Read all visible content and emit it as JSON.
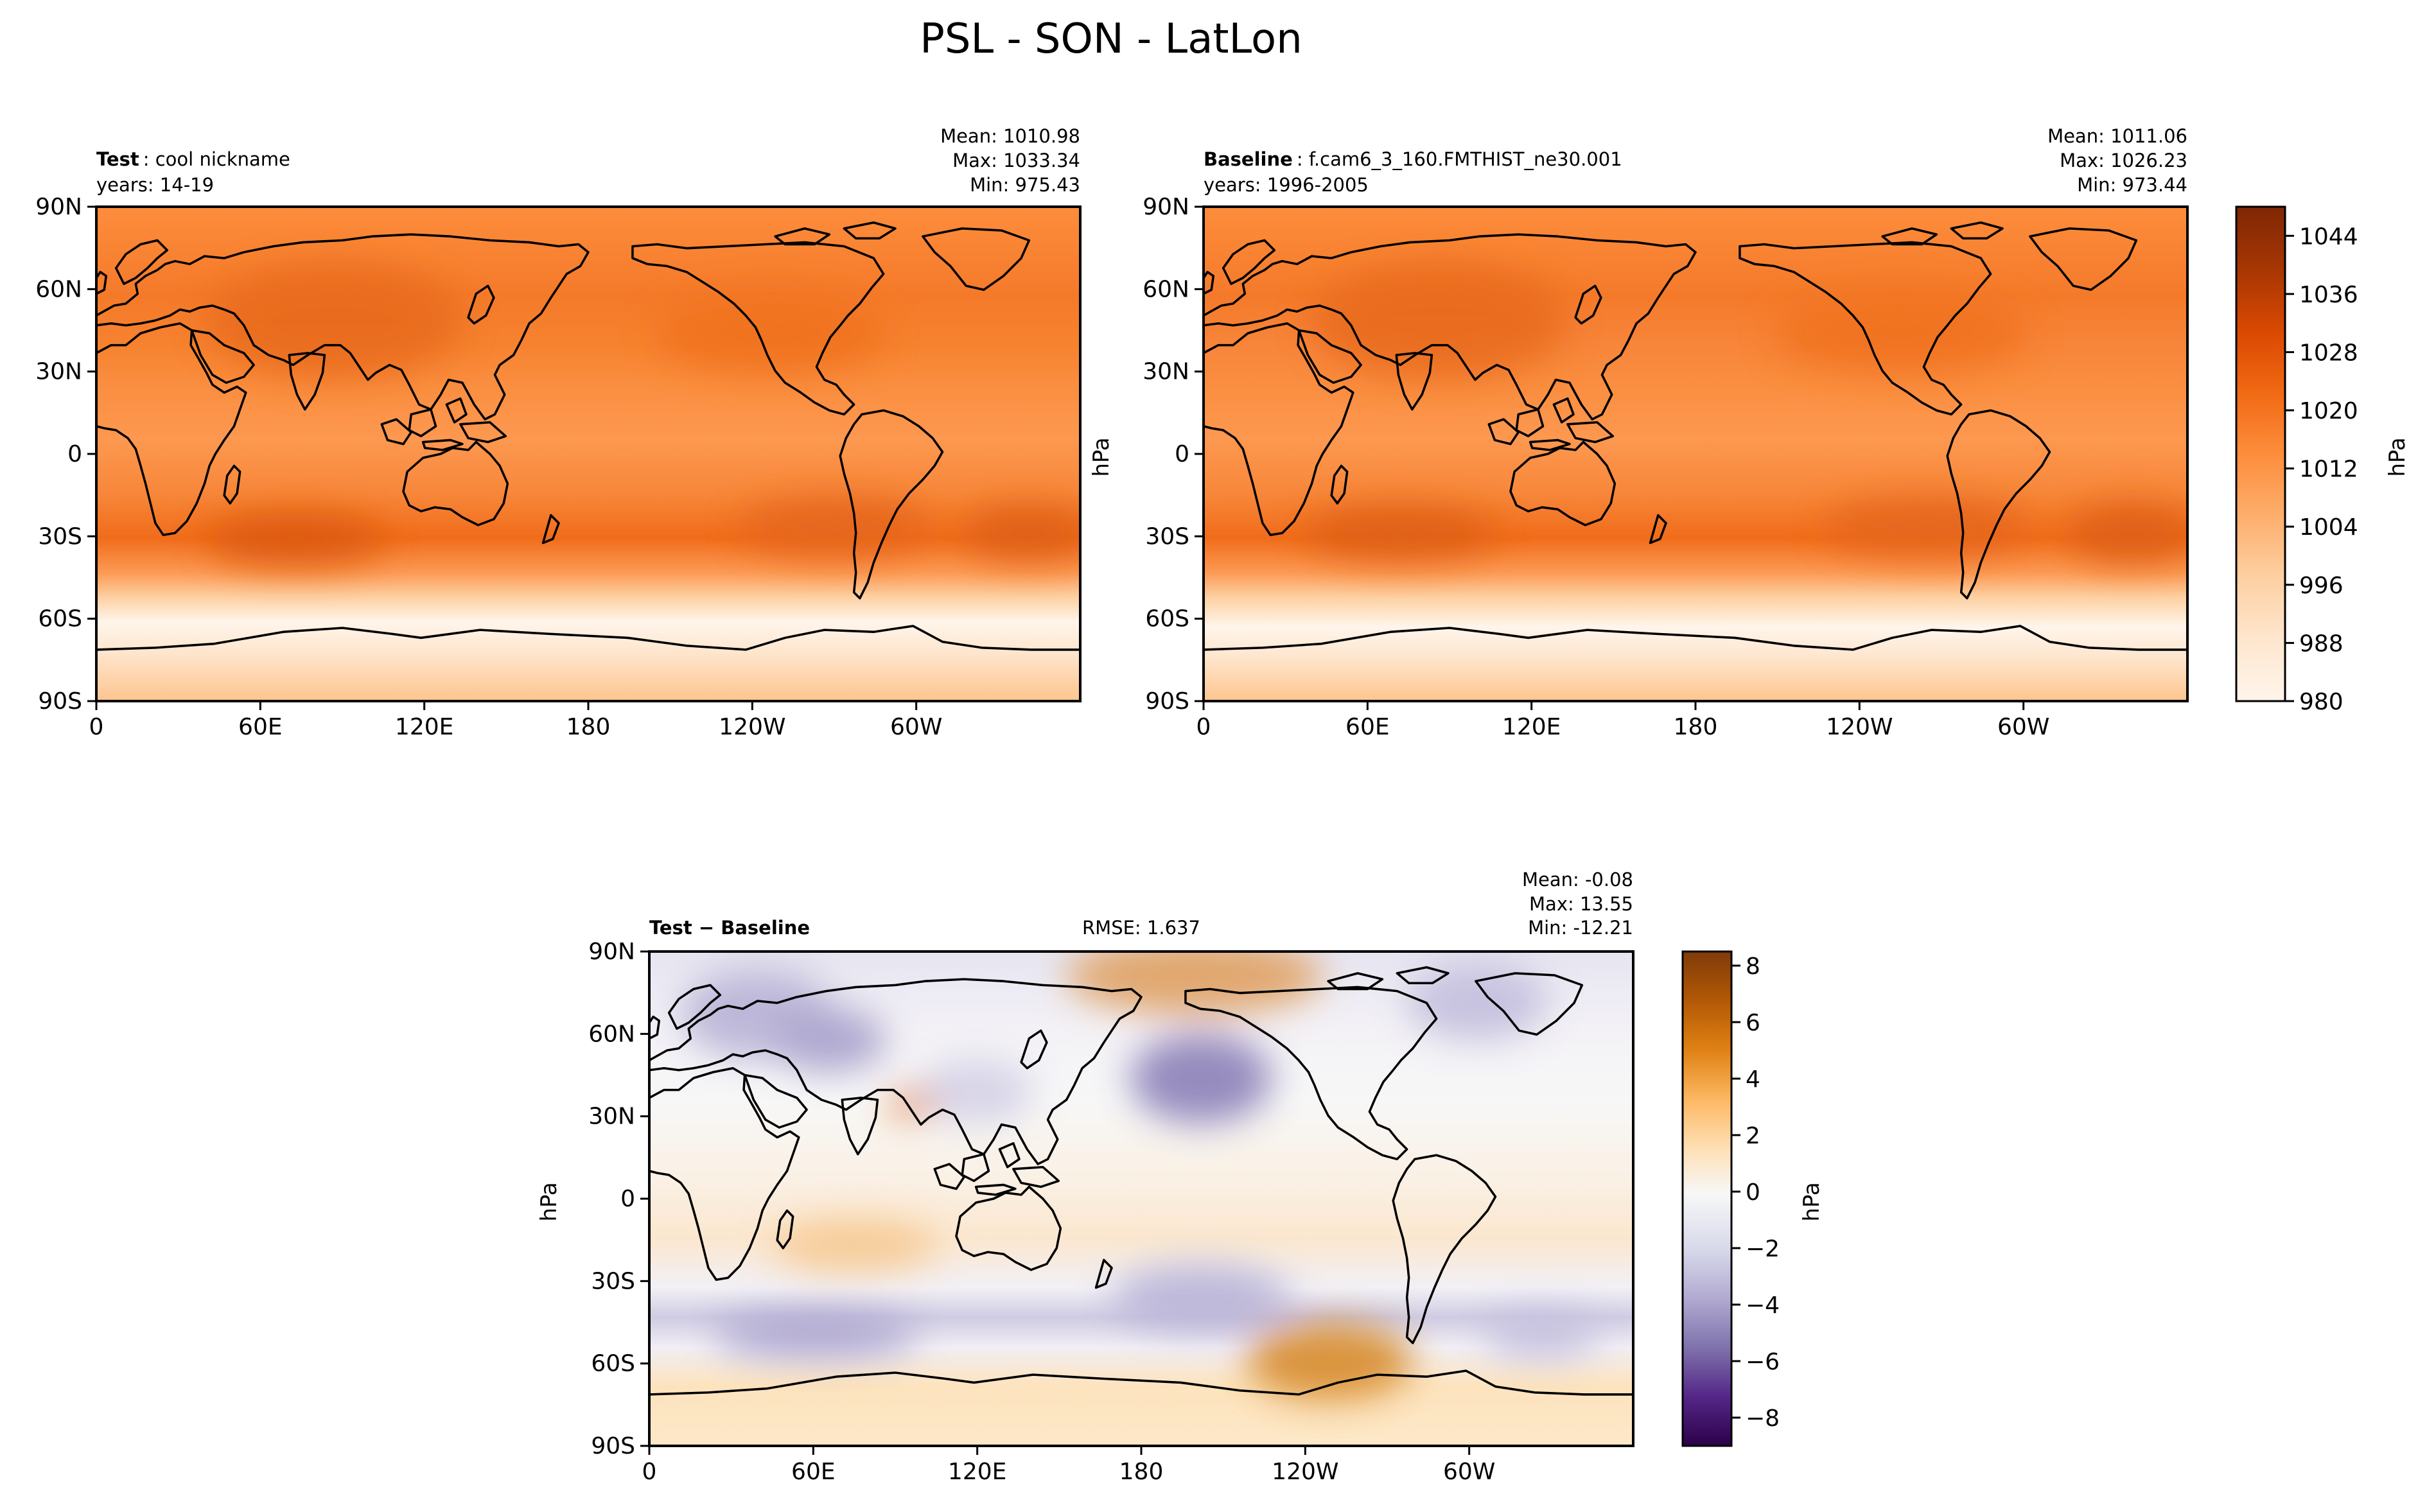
{
  "figure": {
    "title": "PSL - SON - LatLon"
  },
  "colors": {
    "oranges": [
      "#fff5eb",
      "#fee6ce",
      "#fdd0a2",
      "#fdae6b",
      "#fd8d3c",
      "#f16913",
      "#d94801",
      "#a63603",
      "#7f2704"
    ],
    "puor": [
      "#2d004b",
      "#542788",
      "#8073ac",
      "#b2abd2",
      "#d8daeb",
      "#f7f7f7",
      "#fee0b6",
      "#fdb863",
      "#e08214",
      "#b35806",
      "#7f3b08"
    ],
    "coast": "#000000"
  },
  "chart_data": [
    {
      "id": "test",
      "type": "heatmap",
      "name_bold": "Test",
      "name_text": "cool nickname",
      "years": "years: 14-19",
      "stats": [
        "Mean: 1010.98",
        "Max: 1033.34",
        "Min: 975.43"
      ],
      "xticks": [
        "0",
        "60E",
        "120E",
        "180",
        "120W",
        "60W"
      ],
      "yticks": [
        "90N",
        "60N",
        "30N",
        "0",
        "30S",
        "60S",
        "90S"
      ],
      "value_range": [
        980,
        1048
      ]
    },
    {
      "id": "baseline",
      "type": "heatmap",
      "name_bold": "Baseline",
      "name_text": "f.cam6_3_160.FMTHIST_ne30.001",
      "years": "years: 1996-2005",
      "stats": [
        "Mean: 1011.06",
        "Max: 1026.23",
        "Min: 973.44"
      ],
      "ylabel": "hPa",
      "xticks": [
        "0",
        "60E",
        "120E",
        "180",
        "120W",
        "60W"
      ],
      "yticks": [
        "90N",
        "60N",
        "30N",
        "0",
        "30S",
        "60S",
        "90S"
      ],
      "value_range": [
        980,
        1048
      ],
      "colorbar": {
        "label": "hPa",
        "ticks": [
          "980",
          "988",
          "996",
          "1004",
          "1012",
          "1020",
          "1028",
          "1036",
          "1044"
        ],
        "tick_values": [
          980,
          988,
          996,
          1004,
          1012,
          1020,
          1028,
          1036,
          1044
        ],
        "range": [
          980,
          1048
        ]
      }
    },
    {
      "id": "diff",
      "type": "heatmap",
      "name_bold": "Test − Baseline",
      "rmse": "RMSE: 1.637",
      "stats": [
        "Mean: -0.08",
        "Max: 13.55",
        "Min: -12.21"
      ],
      "ylabel": "hPa",
      "xticks": [
        "0",
        "60E",
        "120E",
        "180",
        "120W",
        "60W"
      ],
      "yticks": [
        "90N",
        "60N",
        "30N",
        "0",
        "30S",
        "60S",
        "90S"
      ],
      "value_range": [
        -9,
        8.5
      ],
      "colorbar": {
        "label": "hPa",
        "ticks": [
          "−8",
          "−6",
          "−4",
          "−2",
          "0",
          "2",
          "4",
          "6",
          "8"
        ],
        "tick_values": [
          -8,
          -6,
          -4,
          -2,
          0,
          2,
          4,
          6,
          8
        ],
        "range": [
          -9,
          8.5
        ]
      }
    }
  ]
}
